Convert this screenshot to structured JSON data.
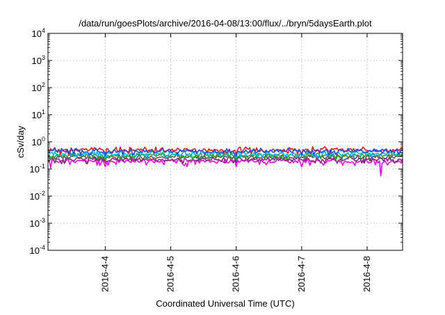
{
  "chart_data": {
    "type": "line",
    "title": "/data/run/goesPlots/archive/2016-04-08/13:00/flux/../bryn/5daysEarth.plot",
    "xlabel": "Coordinated Universal Time (UTC)",
    "ylabel": "cSv/day",
    "yscale": "log",
    "ylim": [
      0.0001,
      10000
    ],
    "y_ticks": [
      {
        "value": 0.0001,
        "base": "10",
        "exp": "-4"
      },
      {
        "value": 0.001,
        "base": "10",
        "exp": "-3"
      },
      {
        "value": 0.01,
        "base": "10",
        "exp": "-2"
      },
      {
        "value": 0.1,
        "base": "10",
        "exp": "-1"
      },
      {
        "value": 1,
        "base": "10",
        "exp": "0"
      },
      {
        "value": 10,
        "base": "10",
        "exp": "1"
      },
      {
        "value": 100,
        "base": "10",
        "exp": "2"
      },
      {
        "value": 1000,
        "base": "10",
        "exp": "3"
      },
      {
        "value": 10000,
        "base": "10",
        "exp": "4"
      }
    ],
    "xlim": [
      "2016-04-03 03:00",
      "2016-04-08 13:00"
    ],
    "x_ticks": [
      {
        "value": "2016-04-04 00:00",
        "label": "2016-4-4"
      },
      {
        "value": "2016-04-05 00:00",
        "label": "2016-4-5"
      },
      {
        "value": "2016-04-06 00:00",
        "label": "2016-4-6"
      },
      {
        "value": "2016-04-07 00:00",
        "label": "2016-4-7"
      },
      {
        "value": "2016-04-08 00:00",
        "label": "2016-4-8"
      }
    ],
    "grid": true,
    "series": [
      {
        "color": "#e41a1c",
        "x_start": "2016-04-03 03:00",
        "x_end": "2016-04-08 13:00",
        "typical": 0.5,
        "dips": [
          [
            "2016-04-04 00:00",
            0.33
          ],
          [
            "2016-04-06 00:00",
            0.33
          ],
          [
            "2016-04-07 00:00",
            0.34
          ]
        ]
      },
      {
        "color": "#1f4fe0",
        "x_start": "2016-04-03 03:00",
        "x_end": "2016-04-08 13:00",
        "typical": 0.45,
        "dips": [
          [
            "2016-04-04 00:00",
            0.3
          ],
          [
            "2016-04-06 00:00",
            0.3
          ],
          [
            "2016-04-07 00:00",
            0.31
          ]
        ]
      },
      {
        "color": "#00b8e8",
        "x_start": "2016-04-03 03:00",
        "x_end": "2016-04-08 13:00",
        "typical": 0.36,
        "dips": [
          [
            "2016-04-04 00:00",
            0.26
          ],
          [
            "2016-04-06 00:00",
            0.26
          ]
        ]
      },
      {
        "color": "#2ca02c",
        "x_start": "2016-04-03 03:00",
        "x_end": "2016-04-08 13:00",
        "typical": 0.31,
        "dips": [
          [
            "2016-04-04 00:00",
            0.22
          ],
          [
            "2016-04-06 00:00",
            0.22
          ]
        ]
      },
      {
        "color": "#555555",
        "x_start": "2016-04-03 03:00",
        "x_end": "2016-04-08 13:00",
        "typical": 0.27,
        "dips": [
          [
            "2016-04-04 00:00",
            0.2
          ],
          [
            "2016-04-06 00:00",
            0.2
          ]
        ]
      },
      {
        "color": "#8b2a7a",
        "x_start": "2016-04-03 03:00",
        "x_end": "2016-04-08 13:00",
        "typical": 0.22,
        "dips": [
          [
            "2016-04-04 00:00",
            0.17
          ],
          [
            "2016-04-06 00:00",
            0.17
          ]
        ]
      },
      {
        "color": "#ff00ff",
        "x_start": "2016-04-03 03:00",
        "x_end": "2016-04-08 13:00",
        "typical": 0.19,
        "dips": [
          [
            "2016-04-03 04:00",
            0.11
          ],
          [
            "2016-04-04 00:00",
            0.12
          ],
          [
            "2016-04-05 06:00",
            0.12
          ],
          [
            "2016-04-06 00:00",
            0.12
          ],
          [
            "2016-04-07 00:00",
            0.12
          ],
          [
            "2016-04-08 05:00",
            0.055
          ]
        ]
      }
    ]
  }
}
